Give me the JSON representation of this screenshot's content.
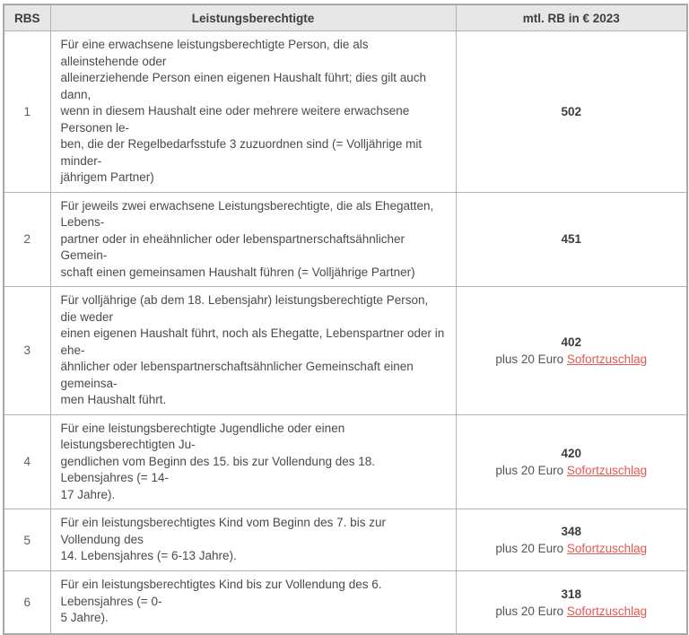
{
  "table": {
    "header": {
      "rbs": "RBS",
      "description": "Leistungsberechtigte",
      "amount": "mtl. RB in € 2023"
    },
    "rows": [
      {
        "rbs": "1",
        "description": "Für eine erwachsene leistungsberechtigte Person, die als alleinstehende oder\nalleinerziehende Person einen eigenen Haushalt führt; dies gilt auch dann,\nwenn in diesem Haushalt eine oder mehrere weitere erwachsene Personen le-\nben, die der Regelbedarfsstufe 3 zuzuordnen sind (= Volljährige mit minder-\njährigem Partner)",
        "amount": "502",
        "surcharge_prefix": "",
        "surcharge_link": ""
      },
      {
        "rbs": "2",
        "description": "Für jeweils zwei erwachsene Leistungsberechtigte, die als Ehegatten, Lebens-\npartner oder in eheähnlicher oder lebenspartnerschaftsähnlicher Gemein-\nschaft einen gemeinsamen Haushalt führen (= Volljährige Partner)",
        "amount": "451",
        "surcharge_prefix": "",
        "surcharge_link": ""
      },
      {
        "rbs": "3",
        "description": "Für volljährige (ab dem 18. Lebensjahr) leistungsberechtigte Person, die weder\neinen eigenen Haushalt führt, noch als Ehegatte, Lebenspartner oder in ehe-\nähnlicher oder lebenspartnerschaftsähnlicher Gemeinschaft einen gemeinsa-\nmen Haushalt führt.",
        "amount": "402",
        "surcharge_prefix": "plus 20 Euro ",
        "surcharge_link": "Sofortzuschlag"
      },
      {
        "rbs": "4",
        "description": "Für eine leistungsberechtigte Jugendliche oder einen leistungsberechtigten Ju-\ngendlichen vom Beginn des 15. bis zur Vollendung des 18. Lebensjahres (= 14-\n17 Jahre).",
        "amount": "420",
        "surcharge_prefix": "plus 20 Euro ",
        "surcharge_link": "Sofortzuschlag"
      },
      {
        "rbs": "5",
        "description": "Für ein leistungsberechtigtes Kind vom Beginn des 7. bis zur Vollendung des\n14. Lebensjahres (= 6-13 Jahre).",
        "amount": "348",
        "surcharge_prefix": "plus 20 Euro ",
        "surcharge_link": "Sofortzuschlag"
      },
      {
        "rbs": "6",
        "description": "Für ein leistungsberechtigtes Kind bis zur Vollendung des 6. Lebensjahres (= 0-\n5 Jahre).",
        "amount": "318",
        "surcharge_prefix": "plus 20 Euro ",
        "surcharge_link": "Sofortzuschlag"
      }
    ]
  },
  "colors": {
    "header_background": "#e7e7e7",
    "border": "#b3b3b3",
    "body_text": "#4b4b4b",
    "link_red": "#e4584f"
  }
}
